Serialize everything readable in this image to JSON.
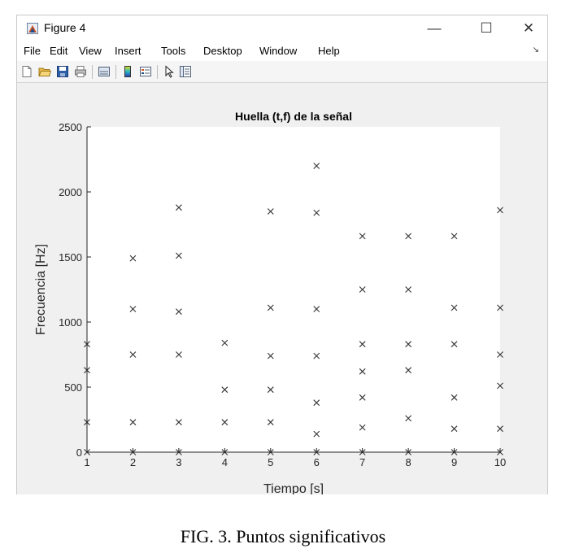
{
  "window": {
    "title": "Figure 4",
    "minimize_glyph": "—",
    "maximize_glyph": "☐",
    "close_glyph": "✕"
  },
  "menubar": {
    "items": [
      "File",
      "Edit",
      "View",
      "Insert",
      "Tools",
      "Desktop",
      "Window",
      "Help"
    ],
    "arrow": "↘"
  },
  "toolbar": {
    "icons": [
      "new-figure-icon",
      "open-file-icon",
      "save-icon",
      "print-icon",
      "link-plot-icon",
      "insert-colorbar-icon",
      "insert-legend-icon",
      "edit-plot-pointer-icon",
      "property-inspector-icon"
    ]
  },
  "chart_data": {
    "type": "scatter",
    "title": "Huella (t,f) de la señal",
    "xlabel": "Tiempo [s]",
    "ylabel": "Frecuencia [Hz]",
    "xlim": [
      1,
      10
    ],
    "ylim": [
      0,
      2500
    ],
    "xticks": [
      1,
      2,
      3,
      4,
      5,
      6,
      7,
      8,
      9,
      10
    ],
    "yticks": [
      0,
      500,
      1000,
      1500,
      2000,
      2500
    ],
    "marker": "x",
    "marker_color": "#333333",
    "grid": false,
    "points": [
      {
        "x": 1,
        "y": 0
      },
      {
        "x": 1,
        "y": 230
      },
      {
        "x": 1,
        "y": 630
      },
      {
        "x": 1,
        "y": 830
      },
      {
        "x": 2,
        "y": 0
      },
      {
        "x": 2,
        "y": 230
      },
      {
        "x": 2,
        "y": 750
      },
      {
        "x": 2,
        "y": 1100
      },
      {
        "x": 2,
        "y": 1490
      },
      {
        "x": 3,
        "y": 0
      },
      {
        "x": 3,
        "y": 230
      },
      {
        "x": 3,
        "y": 750
      },
      {
        "x": 3,
        "y": 1080
      },
      {
        "x": 3,
        "y": 1510
      },
      {
        "x": 3,
        "y": 1880
      },
      {
        "x": 4,
        "y": 0
      },
      {
        "x": 4,
        "y": 230
      },
      {
        "x": 4,
        "y": 480
      },
      {
        "x": 4,
        "y": 840
      },
      {
        "x": 5,
        "y": 0
      },
      {
        "x": 5,
        "y": 230
      },
      {
        "x": 5,
        "y": 480
      },
      {
        "x": 5,
        "y": 740
      },
      {
        "x": 5,
        "y": 1110
      },
      {
        "x": 5,
        "y": 1850
      },
      {
        "x": 6,
        "y": 0
      },
      {
        "x": 6,
        "y": 140
      },
      {
        "x": 6,
        "y": 380
      },
      {
        "x": 6,
        "y": 740
      },
      {
        "x": 6,
        "y": 1100
      },
      {
        "x": 6,
        "y": 1840
      },
      {
        "x": 6,
        "y": 2200
      },
      {
        "x": 7,
        "y": 0
      },
      {
        "x": 7,
        "y": 190
      },
      {
        "x": 7,
        "y": 420
      },
      {
        "x": 7,
        "y": 620
      },
      {
        "x": 7,
        "y": 830
      },
      {
        "x": 7,
        "y": 1250
      },
      {
        "x": 7,
        "y": 1660
      },
      {
        "x": 8,
        "y": 0
      },
      {
        "x": 8,
        "y": 260
      },
      {
        "x": 8,
        "y": 630
      },
      {
        "x": 8,
        "y": 830
      },
      {
        "x": 8,
        "y": 1250
      },
      {
        "x": 8,
        "y": 1660
      },
      {
        "x": 9,
        "y": 0
      },
      {
        "x": 9,
        "y": 180
      },
      {
        "x": 9,
        "y": 420
      },
      {
        "x": 9,
        "y": 830
      },
      {
        "x": 9,
        "y": 1110
      },
      {
        "x": 9,
        "y": 1660
      },
      {
        "x": 10,
        "y": 0
      },
      {
        "x": 10,
        "y": 180
      },
      {
        "x": 10,
        "y": 510
      },
      {
        "x": 10,
        "y": 750
      },
      {
        "x": 10,
        "y": 1110
      },
      {
        "x": 10,
        "y": 1860
      }
    ]
  },
  "caption": "FIG. 3. Puntos significativos"
}
